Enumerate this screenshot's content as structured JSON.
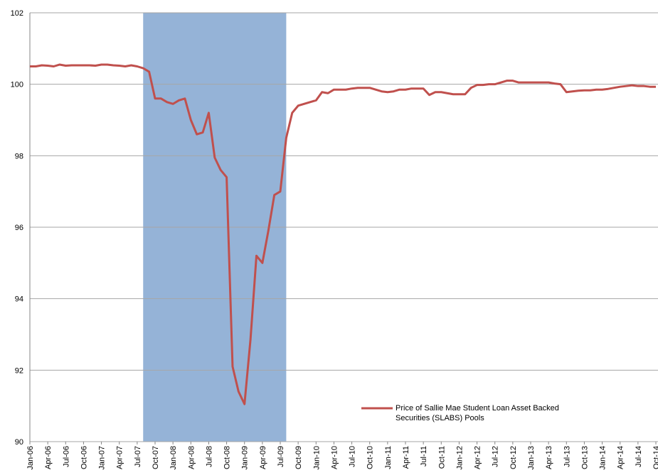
{
  "chart_data": {
    "type": "line",
    "x": [
      "2006-01",
      "2006-02",
      "2006-03",
      "2006-04",
      "2006-05",
      "2006-06",
      "2006-07",
      "2006-08",
      "2006-09",
      "2006-10",
      "2006-11",
      "2006-12",
      "2007-01",
      "2007-02",
      "2007-03",
      "2007-04",
      "2007-05",
      "2007-06",
      "2007-07",
      "2007-08",
      "2007-09",
      "2007-10",
      "2007-11",
      "2007-12",
      "2008-01",
      "2008-02",
      "2008-03",
      "2008-04",
      "2008-05",
      "2008-06",
      "2008-07",
      "2008-08",
      "2008-09",
      "2008-10",
      "2008-11",
      "2008-12",
      "2009-01",
      "2009-02",
      "2009-03",
      "2009-04",
      "2009-05",
      "2009-06",
      "2009-07",
      "2009-08",
      "2009-09",
      "2009-10",
      "2009-11",
      "2009-12",
      "2010-01",
      "2010-02",
      "2010-03",
      "2010-04",
      "2010-05",
      "2010-06",
      "2010-07",
      "2010-08",
      "2010-09",
      "2010-10",
      "2010-11",
      "2010-12",
      "2011-01",
      "2011-02",
      "2011-03",
      "2011-04",
      "2011-05",
      "2011-06",
      "2011-07",
      "2011-08",
      "2011-09",
      "2011-10",
      "2011-11",
      "2011-12",
      "2012-01",
      "2012-02",
      "2012-03",
      "2012-04",
      "2012-05",
      "2012-06",
      "2012-07",
      "2012-08",
      "2012-09",
      "2012-10",
      "2012-11",
      "2012-12",
      "2013-01",
      "2013-02",
      "2013-03",
      "2013-04",
      "2013-05",
      "2013-06",
      "2013-07",
      "2013-08",
      "2013-09",
      "2013-10",
      "2013-11",
      "2013-12",
      "2014-01",
      "2014-02",
      "2014-03",
      "2014-04",
      "2014-05",
      "2014-06",
      "2014-07",
      "2014-08",
      "2014-09",
      "2014-10"
    ],
    "series": [
      {
        "name": "Price of Sallie Mae Student Loan Asset Backed Securities (SLABS) Pools",
        "color": "#c0504d",
        "values": [
          100.5,
          100.5,
          100.53,
          100.52,
          100.5,
          100.55,
          100.52,
          100.53,
          100.53,
          100.53,
          100.53,
          100.52,
          100.55,
          100.55,
          100.53,
          100.52,
          100.5,
          100.53,
          100.5,
          100.45,
          100.35,
          99.6,
          99.6,
          99.5,
          99.45,
          99.55,
          99.6,
          99.0,
          98.6,
          98.65,
          99.2,
          97.95,
          97.6,
          97.4,
          92.1,
          91.4,
          91.05,
          92.85,
          95.2,
          95.0,
          95.9,
          96.9,
          97.0,
          98.5,
          99.2,
          99.4,
          99.45,
          99.5,
          99.55,
          99.78,
          99.75,
          99.85,
          99.85,
          99.85,
          99.88,
          99.9,
          99.9,
          99.9,
          99.85,
          99.8,
          99.78,
          99.8,
          99.85,
          99.85,
          99.88,
          99.88,
          99.88,
          99.7,
          99.78,
          99.78,
          99.75,
          99.72,
          99.72,
          99.72,
          99.9,
          99.98,
          99.98,
          100.0,
          100.0,
          100.05,
          100.1,
          100.1,
          100.05,
          100.05,
          100.05,
          100.05,
          100.05,
          100.05,
          100.02,
          100.0,
          99.78,
          99.8,
          99.82,
          99.83,
          99.83,
          99.85,
          99.85,
          99.87,
          99.9,
          99.93,
          99.95,
          99.97,
          99.95,
          99.95,
          99.93,
          99.93
        ]
      }
    ],
    "shaded_range": [
      "2007-08",
      "2009-08"
    ],
    "shade_color": "#95b3d7",
    "xlim": [
      "2006-01",
      "2014-10"
    ],
    "xticks": [
      {
        "value": "2006-01",
        "label": "Jan-06"
      },
      {
        "value": "2006-04",
        "label": "Apr-06"
      },
      {
        "value": "2006-07",
        "label": "Jul-06"
      },
      {
        "value": "2006-10",
        "label": "Oct-06"
      },
      {
        "value": "2007-01",
        "label": "Jan-07"
      },
      {
        "value": "2007-04",
        "label": "Apr-07"
      },
      {
        "value": "2007-07",
        "label": "Jul-07"
      },
      {
        "value": "2007-10",
        "label": "Oct-07"
      },
      {
        "value": "2008-01",
        "label": "Jan-08"
      },
      {
        "value": "2008-04",
        "label": "Apr-08"
      },
      {
        "value": "2008-07",
        "label": "Jul-08"
      },
      {
        "value": "2008-10",
        "label": "Oct-08"
      },
      {
        "value": "2009-01",
        "label": "Jan-09"
      },
      {
        "value": "2009-04",
        "label": "Apr-09"
      },
      {
        "value": "2009-07",
        "label": "Jul-09"
      },
      {
        "value": "2009-10",
        "label": "Oct-09"
      },
      {
        "value": "2010-01",
        "label": "Jan-10"
      },
      {
        "value": "2010-04",
        "label": "Apr-10"
      },
      {
        "value": "2010-07",
        "label": "Jul-10"
      },
      {
        "value": "2010-10",
        "label": "Oct-10"
      },
      {
        "value": "2011-01",
        "label": "Jan-11"
      },
      {
        "value": "2011-04",
        "label": "Apr-11"
      },
      {
        "value": "2011-07",
        "label": "Jul-11"
      },
      {
        "value": "2011-10",
        "label": "Oct-11"
      },
      {
        "value": "2012-01",
        "label": "Jan-12"
      },
      {
        "value": "2012-04",
        "label": "Apr-12"
      },
      {
        "value": "2012-07",
        "label": "Jul-12"
      },
      {
        "value": "2012-10",
        "label": "Oct-12"
      },
      {
        "value": "2013-01",
        "label": "Jan-13"
      },
      {
        "value": "2013-04",
        "label": "Apr-13"
      },
      {
        "value": "2013-07",
        "label": "Jul-13"
      },
      {
        "value": "2013-10",
        "label": "Oct-13"
      },
      {
        "value": "2014-01",
        "label": "Jan-14"
      },
      {
        "value": "2014-04",
        "label": "Apr-14"
      },
      {
        "value": "2014-07",
        "label": "Jul-14"
      },
      {
        "value": "2014-10",
        "label": "Oct-14"
      }
    ],
    "ylim": [
      90,
      102
    ],
    "yticks": [
      90,
      92,
      94,
      96,
      98,
      100,
      102
    ],
    "grid": true,
    "legend": "lower right"
  }
}
